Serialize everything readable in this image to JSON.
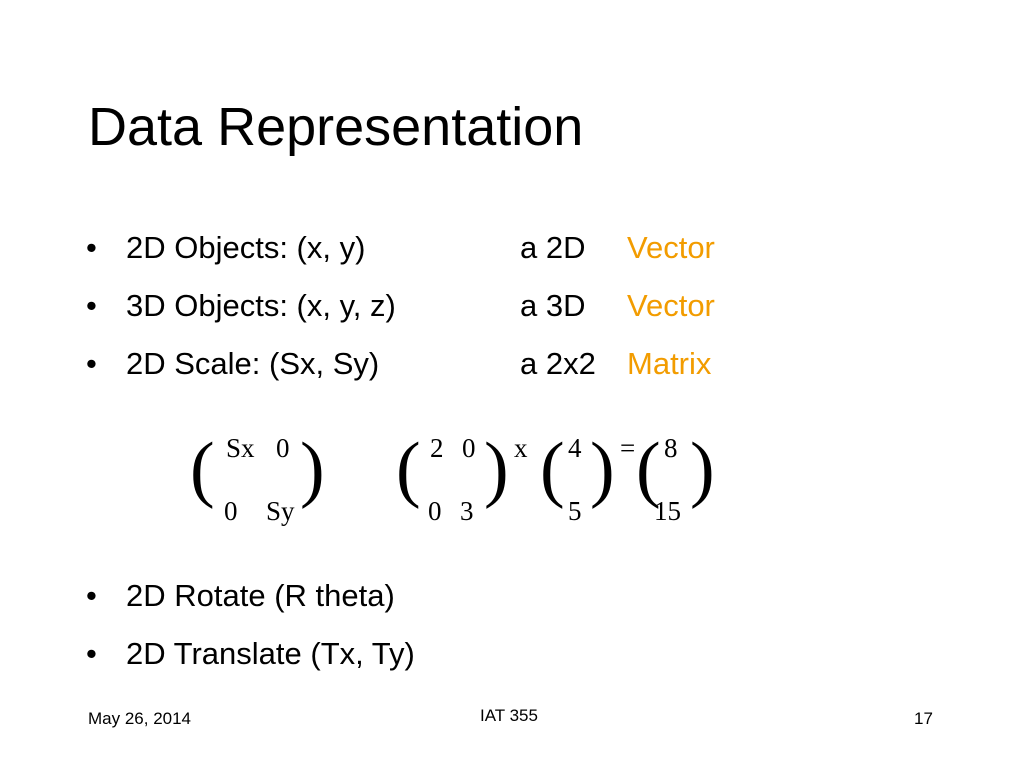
{
  "title": "Data Representation",
  "bullets_top": [
    {
      "text": "2D Objects: (x, y)",
      "prefix": "a 2D",
      "term": "Vector"
    },
    {
      "text": "3D Objects: (x, y, z)",
      "prefix": "a 3D",
      "term": "Vector"
    },
    {
      "text": "2D Scale: (Sx, Sy)",
      "prefix": "a 2x2",
      "term": "Matrix"
    }
  ],
  "bullet_symbol": "•",
  "math": {
    "scale_matrix": {
      "r1c1": "Sx",
      "r1c2": "0",
      "r2c1": "0",
      "r2c2": "Sy"
    },
    "example_matrix": {
      "r1c1": "2",
      "r1c2": "0",
      "r2c1": "0",
      "r2c2": "3"
    },
    "times": "x",
    "vector": {
      "r1": "4",
      "r2": "5"
    },
    "equals": "=",
    "result": {
      "r1": "8",
      "r2": "15"
    }
  },
  "bullets_bottom": [
    {
      "text": "2D Rotate (R theta)"
    },
    {
      "text": "2D Translate (Tx, Ty)"
    }
  ],
  "footer": {
    "date": "May 26, 2014",
    "course": "IAT 355",
    "page": "17"
  },
  "colors": {
    "accent": "#f29c00",
    "text": "#000000",
    "background": "#ffffff"
  }
}
